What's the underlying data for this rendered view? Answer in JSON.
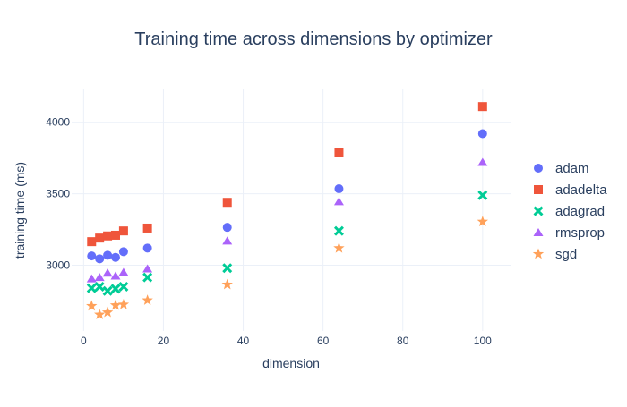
{
  "chart_data": {
    "type": "scatter",
    "title": "Training time across dimensions by optimizer",
    "xlabel": "dimension",
    "ylabel": "training time (ms)",
    "xlim": [
      -3,
      107
    ],
    "ylim": [
      2540,
      4230
    ],
    "xticks": [
      0,
      20,
      40,
      60,
      80,
      100
    ],
    "yticks": [
      3000,
      3500,
      4000
    ],
    "grid": true,
    "legend_position": "right",
    "series": [
      {
        "name": "adam",
        "color": "#636efa",
        "marker": "circle",
        "x": [
          2,
          4,
          6,
          8,
          10,
          16,
          36,
          64,
          100
        ],
        "y": [
          3065,
          3045,
          3070,
          3055,
          3095,
          3120,
          3265,
          3535,
          3920
        ]
      },
      {
        "name": "adadelta",
        "color": "#ef553b",
        "marker": "square",
        "x": [
          2,
          4,
          6,
          8,
          10,
          16,
          36,
          64,
          100
        ],
        "y": [
          3165,
          3190,
          3205,
          3210,
          3240,
          3260,
          3440,
          3790,
          4110
        ]
      },
      {
        "name": "adagrad",
        "color": "#00cc96",
        "marker": "x",
        "x": [
          2,
          4,
          6,
          8,
          10,
          16,
          36,
          64,
          100
        ],
        "y": [
          2840,
          2850,
          2820,
          2835,
          2850,
          2915,
          2980,
          3240,
          3490
        ]
      },
      {
        "name": "rmsprop",
        "color": "#ab63fa",
        "marker": "triangle-up",
        "x": [
          2,
          4,
          6,
          8,
          10,
          16,
          36,
          64,
          100
        ],
        "y": [
          2905,
          2915,
          2945,
          2925,
          2950,
          2975,
          3170,
          3445,
          3720
        ]
      },
      {
        "name": "sgd",
        "color": "#ffa15a",
        "marker": "star",
        "x": [
          2,
          4,
          6,
          8,
          10,
          16,
          36,
          64,
          100
        ],
        "y": [
          2715,
          2655,
          2670,
          2720,
          2725,
          2755,
          2865,
          3120,
          3305
        ]
      }
    ]
  }
}
